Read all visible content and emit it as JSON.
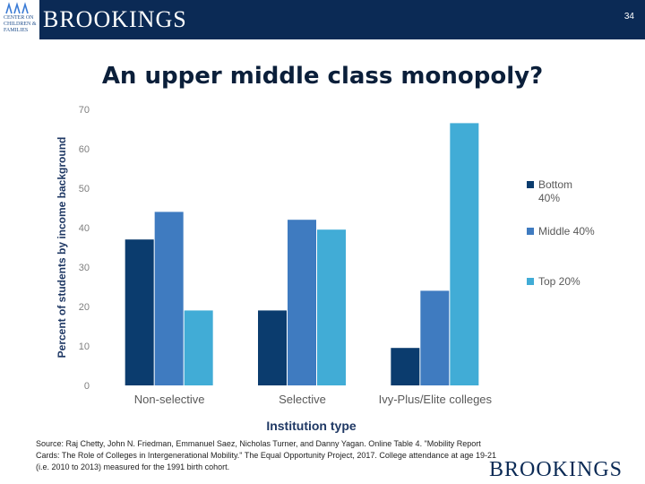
{
  "header": {
    "brand": "BROOKINGS",
    "logo_text": "CENTER ON CHILDREN & FAMILIES",
    "page_number": "34"
  },
  "slide": {
    "title": "An upper middle class monopoly?"
  },
  "chart_data": {
    "type": "bar",
    "ylabel": "Percent of students by income background",
    "xlabel": "Institution type",
    "ylim": [
      0,
      70
    ],
    "yticks": [
      0,
      10,
      20,
      30,
      40,
      50,
      60,
      70
    ],
    "categories": [
      "Non-selective",
      "Selective",
      "Ivy-Plus/Elite colleges"
    ],
    "series": [
      {
        "name": "Bottom 40%",
        "color": "#0b3c6e",
        "values": [
          37,
          19,
          9.5
        ]
      },
      {
        "name": "Middle 40%",
        "color": "#3f7bc0",
        "values": [
          44,
          42,
          24
        ]
      },
      {
        "name": "Top 20%",
        "color": "#41acd6",
        "values": [
          19,
          39.5,
          66.5
        ]
      }
    ],
    "legend_position": "right",
    "grid": false
  },
  "source": {
    "text": "Source: Raj Chetty, John N. Friedman, Emmanuel Saez, Nicholas Turner, and Danny Yagan. Online Table 4. \"Mobility Report Cards: The Role of Colleges in Intergenerational Mobility.\" The Equal Opportunity Project, 2017. College attendance at age 19-21 (i.e. 2010 to 2013) measured for the 1991 birth cohort."
  },
  "footer": {
    "brand": "BROOKINGS"
  }
}
